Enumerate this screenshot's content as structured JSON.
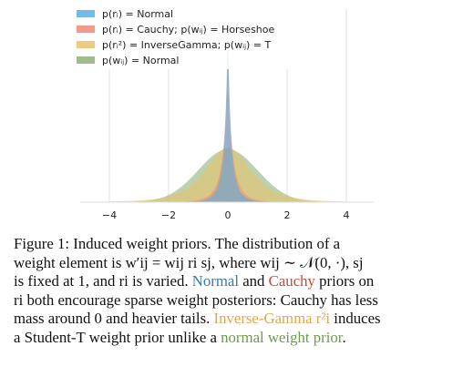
{
  "chart_data": {
    "type": "area",
    "xlim": [
      -4.5,
      4.8
    ],
    "x_ticks": [
      "−4",
      "−2",
      "0",
      "2",
      "4"
    ],
    "x_tick_values": [
      -4,
      -2,
      0,
      2,
      4
    ],
    "grid": "vertical",
    "legend_placement": "top-left",
    "series": [
      {
        "name": "p(rᵢ) = Normal",
        "color": "#5aaedf",
        "shape": "sharp-peak",
        "scale": 0.55
      },
      {
        "name": "p(rᵢ) = Cauchy; p(wᵢⱼ) = Horseshoe",
        "color": "#f08a78",
        "shape": "sharp-peak",
        "scale": 0.7
      },
      {
        "name": "p(rᵢ²) = InverseGamma; p(wᵢⱼ) = T",
        "color": "#e8c26a",
        "shape": "student-t",
        "scale": 0.8
      },
      {
        "name": "p(wᵢⱼ) = Normal",
        "color": "#8db37a",
        "shape": "normal",
        "scale": 1.0
      }
    ]
  },
  "caption": {
    "label": "Figure 1:",
    "lines": [
      "Induced weight priors. The distribution of a",
      "weight element is w′ij = wij ri sj, where wij ∼ 𝒩(0, ·), sj",
      "is fixed at 1, and ri is varied.",
      "Normal",
      "and",
      "Cauchy",
      "priors on",
      "ri both encourage sparse weight posteriors: Cauchy has less",
      "mass around 0 and heavier tails.",
      "Inverse-Gamma r²i",
      "induces",
      "a Student-T weight prior unlike a",
      "normal weight prior",
      "."
    ]
  }
}
